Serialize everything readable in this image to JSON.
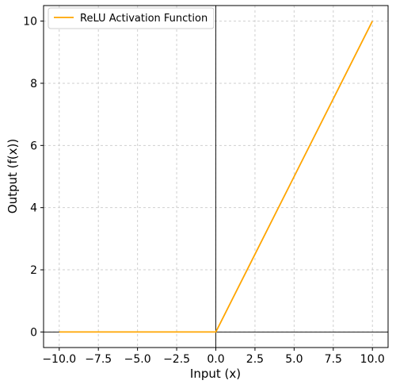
{
  "chart_data": {
    "type": "line",
    "title": "",
    "xlabel": "Input (x)",
    "ylabel": "Output (f(x))",
    "xlim": [
      -11,
      11
    ],
    "ylim": [
      -0.5,
      10.5
    ],
    "xticks": [
      -10.0,
      -7.5,
      -5.0,
      -2.5,
      0.0,
      2.5,
      5.0,
      7.5,
      10.0
    ],
    "xtick_labels": [
      "−10.0",
      "−7.5",
      "−5.0",
      "−2.5",
      "0.0",
      "2.5",
      "5.0",
      "7.5",
      "10.0"
    ],
    "yticks": [
      0,
      2,
      4,
      6,
      8,
      10
    ],
    "ytick_labels": [
      "0",
      "2",
      "4",
      "6",
      "8",
      "10"
    ],
    "grid": true,
    "legend_position": "top-left",
    "series": [
      {
        "name": "ReLU Activation Function",
        "color": "#FFA500",
        "x": [
          -10,
          -7.5,
          -5,
          -2.5,
          0,
          2.5,
          5,
          7.5,
          10
        ],
        "y": [
          0,
          0,
          0,
          0,
          0,
          2.5,
          5,
          7.5,
          10
        ]
      }
    ],
    "reference_lines": {
      "x": 0,
      "y": 0
    }
  }
}
